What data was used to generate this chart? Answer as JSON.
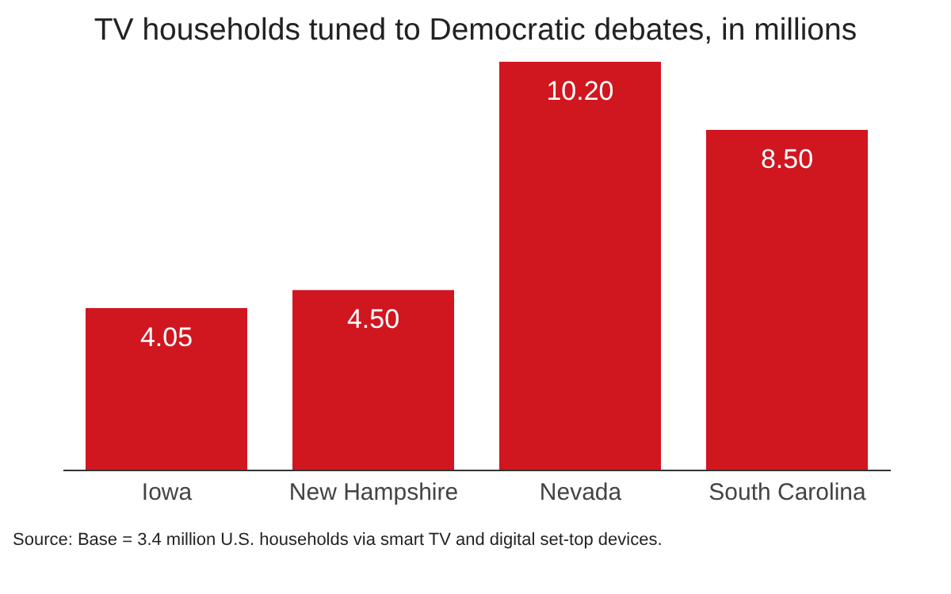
{
  "chart_data": {
    "type": "bar",
    "title": "TV households tuned to Democratic debates, in millions",
    "categories": [
      "Iowa",
      "New Hampshire",
      "Nevada",
      "South Carolina"
    ],
    "values": [
      4.05,
      4.5,
      10.2,
      8.5
    ],
    "value_labels": [
      "4.05",
      "4.50",
      "10.20",
      "8.50"
    ],
    "color": "#d0161f",
    "tick_labels": "x",
    "annotations": [
      "Source: Base = 3.4 million U.S. households via smart TV and digital set-top devices."
    ]
  }
}
